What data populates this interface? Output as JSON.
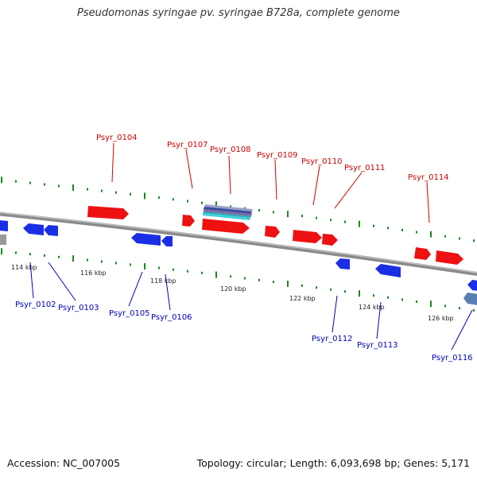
{
  "title": "Pseudomonas syringae pv. syringae B728a, complete genome",
  "footer": {
    "accession": "Accession: NC_007005",
    "summary": "Topology: circular; Length: 6,093,698 bp; Genes: 5,171"
  },
  "colors": {
    "forward_gene": "#ee1111",
    "reverse_gene": "#1a2ee6",
    "rna_gene": "#2aa7b8",
    "pseudo_gene": "#5a7fb0",
    "backbone": "#808080",
    "tick_mark": "#1a8a1a"
  },
  "scale_labels": [
    "114 kbp",
    "116 kbp",
    "118 kbp",
    "120 kbp",
    "122 kbp",
    "124 kbp",
    "126 kbp"
  ],
  "forward_genes": [
    "Psyr_0104",
    "Psyr_0107",
    "Psyr_0108",
    "Psyr_0109",
    "Psyr_0110",
    "Psyr_0111",
    "Psyr_0114"
  ],
  "reverse_genes": [
    "Psyr_0102",
    "Psyr_0103",
    "Psyr_0105",
    "Psyr_0106",
    "Psyr_0112",
    "Psyr_0113",
    "Psyr_0116"
  ]
}
